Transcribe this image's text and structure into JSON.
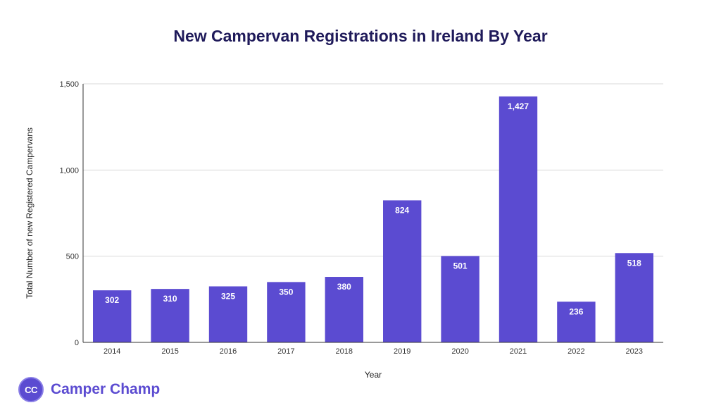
{
  "chart_data": {
    "type": "bar",
    "title": "New Campervan Registrations in Ireland By Year",
    "xlabel": "Year",
    "ylabel": "Total Number of new Registered Campervans",
    "categories": [
      "2014",
      "2015",
      "2016",
      "2017",
      "2018",
      "2019",
      "2020",
      "2021",
      "2022",
      "2023"
    ],
    "values": [
      302,
      310,
      325,
      350,
      380,
      824,
      501,
      1427,
      236,
      518
    ],
    "value_labels": [
      "302",
      "310",
      "325",
      "350",
      "380",
      "824",
      "501",
      "1,427",
      "236",
      "518"
    ],
    "ylim": [
      0,
      1500
    ],
    "yticks": [
      0,
      500,
      1000,
      1500
    ],
    "ytick_labels": [
      "0",
      "500",
      "1,000",
      "1,500"
    ],
    "grid": true,
    "bar_color": "#5b4bd1"
  },
  "brand": {
    "logo_text": "CC",
    "name": "Camper Champ"
  }
}
